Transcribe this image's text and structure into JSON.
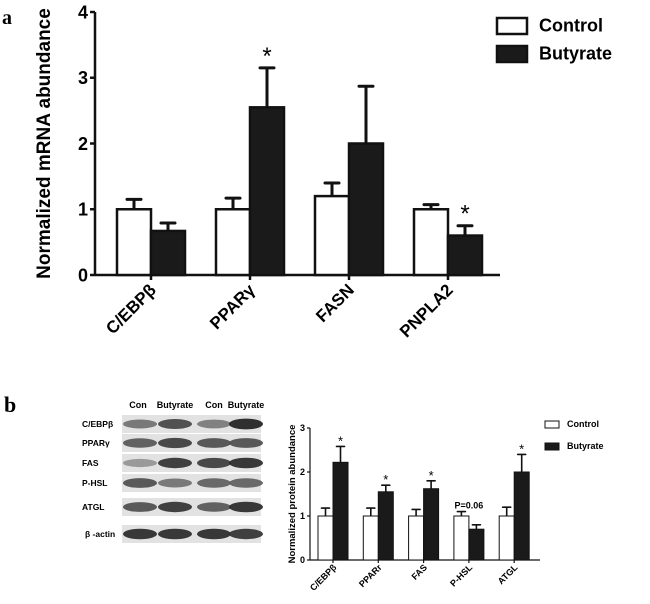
{
  "panel_labels": {
    "a": "a",
    "b": "b"
  },
  "chart_data": [
    {
      "type": "bar",
      "panel": "a",
      "ylabel": "Normalized mRNA abundance",
      "ylim": [
        0,
        4
      ],
      "yticks": [
        "0",
        "1",
        "2",
        "3",
        "4"
      ],
      "categories": [
        "C/EBPβ",
        "PPARγ",
        "FASN",
        "PNPLA2"
      ],
      "legend_position": "top-right",
      "series": [
        {
          "name": "Control",
          "color": "#ffffff",
          "values": [
            1.0,
            1.0,
            1.2,
            1.0
          ],
          "error_upper": [
            1.15,
            1.17,
            1.4,
            1.07
          ]
        },
        {
          "name": "Butyrate",
          "color": "#1a1a1a",
          "values": [
            0.67,
            2.55,
            2.0,
            0.6
          ],
          "error_upper": [
            0.79,
            3.15,
            2.87,
            0.75
          ]
        }
      ],
      "annotations": [
        {
          "category": "PPARγ",
          "series": "Butyrate",
          "text": "*"
        },
        {
          "category": "PNPLA2",
          "series": "Butyrate",
          "text": "*"
        }
      ]
    },
    {
      "type": "bar",
      "panel": "b",
      "ylabel": "Normalized protein abundance",
      "ylim": [
        0,
        3
      ],
      "yticks": [
        "0",
        "1",
        "2",
        "3"
      ],
      "categories": [
        "C/EBPβ",
        "PPARr",
        "FAS",
        "P-HSL",
        "ATGL"
      ],
      "legend_position": "right",
      "series": [
        {
          "name": "Control",
          "color": "#ffffff",
          "values": [
            1.0,
            1.0,
            1.0,
            1.0,
            1.0
          ],
          "error_upper": [
            1.18,
            1.18,
            1.15,
            1.1,
            1.2
          ]
        },
        {
          "name": "Butyrate",
          "color": "#1a1a1a",
          "values": [
            2.22,
            1.55,
            1.62,
            0.7,
            2.0
          ],
          "error_upper": [
            2.58,
            1.7,
            1.8,
            0.8,
            2.4
          ]
        }
      ],
      "annotations": [
        {
          "category": "C/EBPβ",
          "series": "Butyrate",
          "text": "*"
        },
        {
          "category": "PPARr",
          "series": "Butyrate",
          "text": "*"
        },
        {
          "category": "FAS",
          "series": "Butyrate",
          "text": "*"
        },
        {
          "category": "P-HSL",
          "series": "Control",
          "text": "P=0.06"
        },
        {
          "category": "ATGL",
          "series": "Butyrate",
          "text": "*"
        }
      ]
    }
  ],
  "western_blot": {
    "lane_labels": [
      "Con",
      "Butyrate",
      "Con",
      "Butyrate"
    ],
    "rows": [
      {
        "label": "C/EBPβ",
        "intensity": [
          0.5,
          0.75,
          0.45,
          0.95
        ]
      },
      {
        "label": "PPARγ",
        "intensity": [
          0.65,
          0.8,
          0.7,
          0.7
        ]
      },
      {
        "label": "FAS",
        "intensity": [
          0.3,
          0.85,
          0.8,
          0.9
        ]
      },
      {
        "label": "P-HSL",
        "intensity": [
          0.7,
          0.5,
          0.6,
          0.6
        ]
      },
      {
        "label": "ATGL",
        "intensity": [
          0.7,
          0.85,
          0.65,
          0.9
        ]
      },
      {
        "label": "β -actin",
        "intensity": [
          0.9,
          0.9,
          0.9,
          0.85
        ]
      }
    ]
  }
}
